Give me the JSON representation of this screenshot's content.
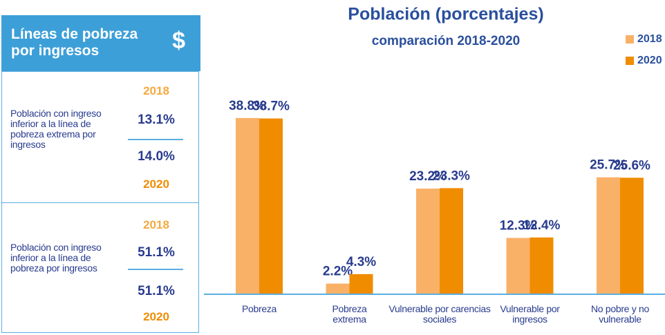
{
  "panel": {
    "title": "Líneas de pobreza por ingresos",
    "icon": "$",
    "blocks": [
      {
        "label": "Población con ingreso inferior a la línea de pobreza extrema por ingresos",
        "year_top": "2018",
        "value_top": "13.1%",
        "value_bottom": "14.0%",
        "year_bottom": "2020"
      },
      {
        "label": "Población con ingreso inferior a la línea de pobreza por ingresos",
        "year_top": "2018",
        "value_top": "51.1%",
        "value_bottom": "51.1%",
        "year_bottom": "2020"
      }
    ]
  },
  "chart_data": {
    "type": "bar",
    "title": "Población (porcentajes)",
    "subtitle": "comparación 2018-2020",
    "categories": [
      "Pobreza",
      "Pobreza extrema",
      "Vulnerable por carencias sociales",
      "Vulnerable por ingresos",
      "No pobre y no vulnerable"
    ],
    "series": [
      {
        "name": "2018",
        "color": "#f9b168",
        "values": [
          38.8,
          2.2,
          23.2,
          12.3,
          25.7
        ],
        "value_labels": [
          "38.8%",
          "2.2%",
          "23.2%",
          "12.3%",
          "25.7%"
        ]
      },
      {
        "name": "2020",
        "color": "#f08c00",
        "values": [
          38.7,
          4.3,
          23.3,
          12.4,
          25.6
        ],
        "value_labels": [
          "38.7%",
          "4.3%",
          "23.3%",
          "12.4%",
          "25.6%"
        ]
      }
    ],
    "legend": "top-right"
  }
}
